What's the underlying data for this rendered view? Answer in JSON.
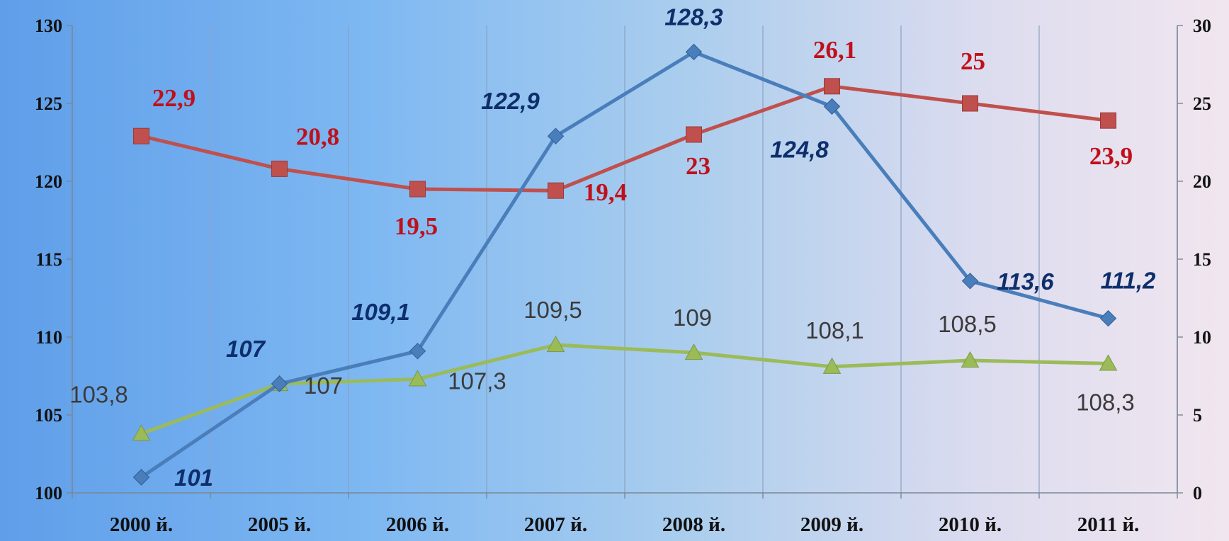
{
  "chart_data": {
    "type": "line",
    "categories": [
      "2000 й.",
      "2005 й.",
      "2006 й.",
      "2007 й.",
      "2008 й.",
      "2009 й.",
      "2010 й.",
      "2011 й."
    ],
    "y_left": {
      "min": 100,
      "max": 130,
      "step": 5,
      "ticks": [
        "100",
        "105",
        "110",
        "115",
        "120",
        "125",
        "130"
      ]
    },
    "y_right": {
      "min": 0,
      "max": 30,
      "step": 5,
      "ticks": [
        "0",
        "5",
        "10",
        "15",
        "20",
        "25",
        "30"
      ]
    },
    "grid": "vertical",
    "series": [
      {
        "axis": "left",
        "color": "#4a7ebb",
        "marker": "diamond",
        "values": [
          101,
          107,
          109.1,
          122.9,
          128.3,
          124.8,
          113.6,
          111.2
        ],
        "labels": [
          "101",
          "107",
          "109,1",
          "122,9",
          "128,3",
          "124,8",
          "113,6",
          "111,2"
        ]
      },
      {
        "axis": "right",
        "color": "#c0504d",
        "marker": "square",
        "values": [
          22.9,
          20.8,
          19.5,
          19.4,
          23,
          26.1,
          25,
          23.9
        ],
        "labels": [
          "22,9",
          "20,8",
          "19,5",
          "19,4",
          "23",
          "26,1",
          "25",
          "23,9"
        ]
      },
      {
        "axis": "left",
        "color": "#9bbb59",
        "marker": "triangle",
        "values": [
          103.8,
          107,
          107.3,
          109.5,
          109,
          108.1,
          108.5,
          108.3
        ],
        "labels": [
          "103,8",
          "107",
          "107,3",
          "109,5",
          "109",
          "108,1",
          "108,5",
          "108,3"
        ]
      }
    ]
  }
}
